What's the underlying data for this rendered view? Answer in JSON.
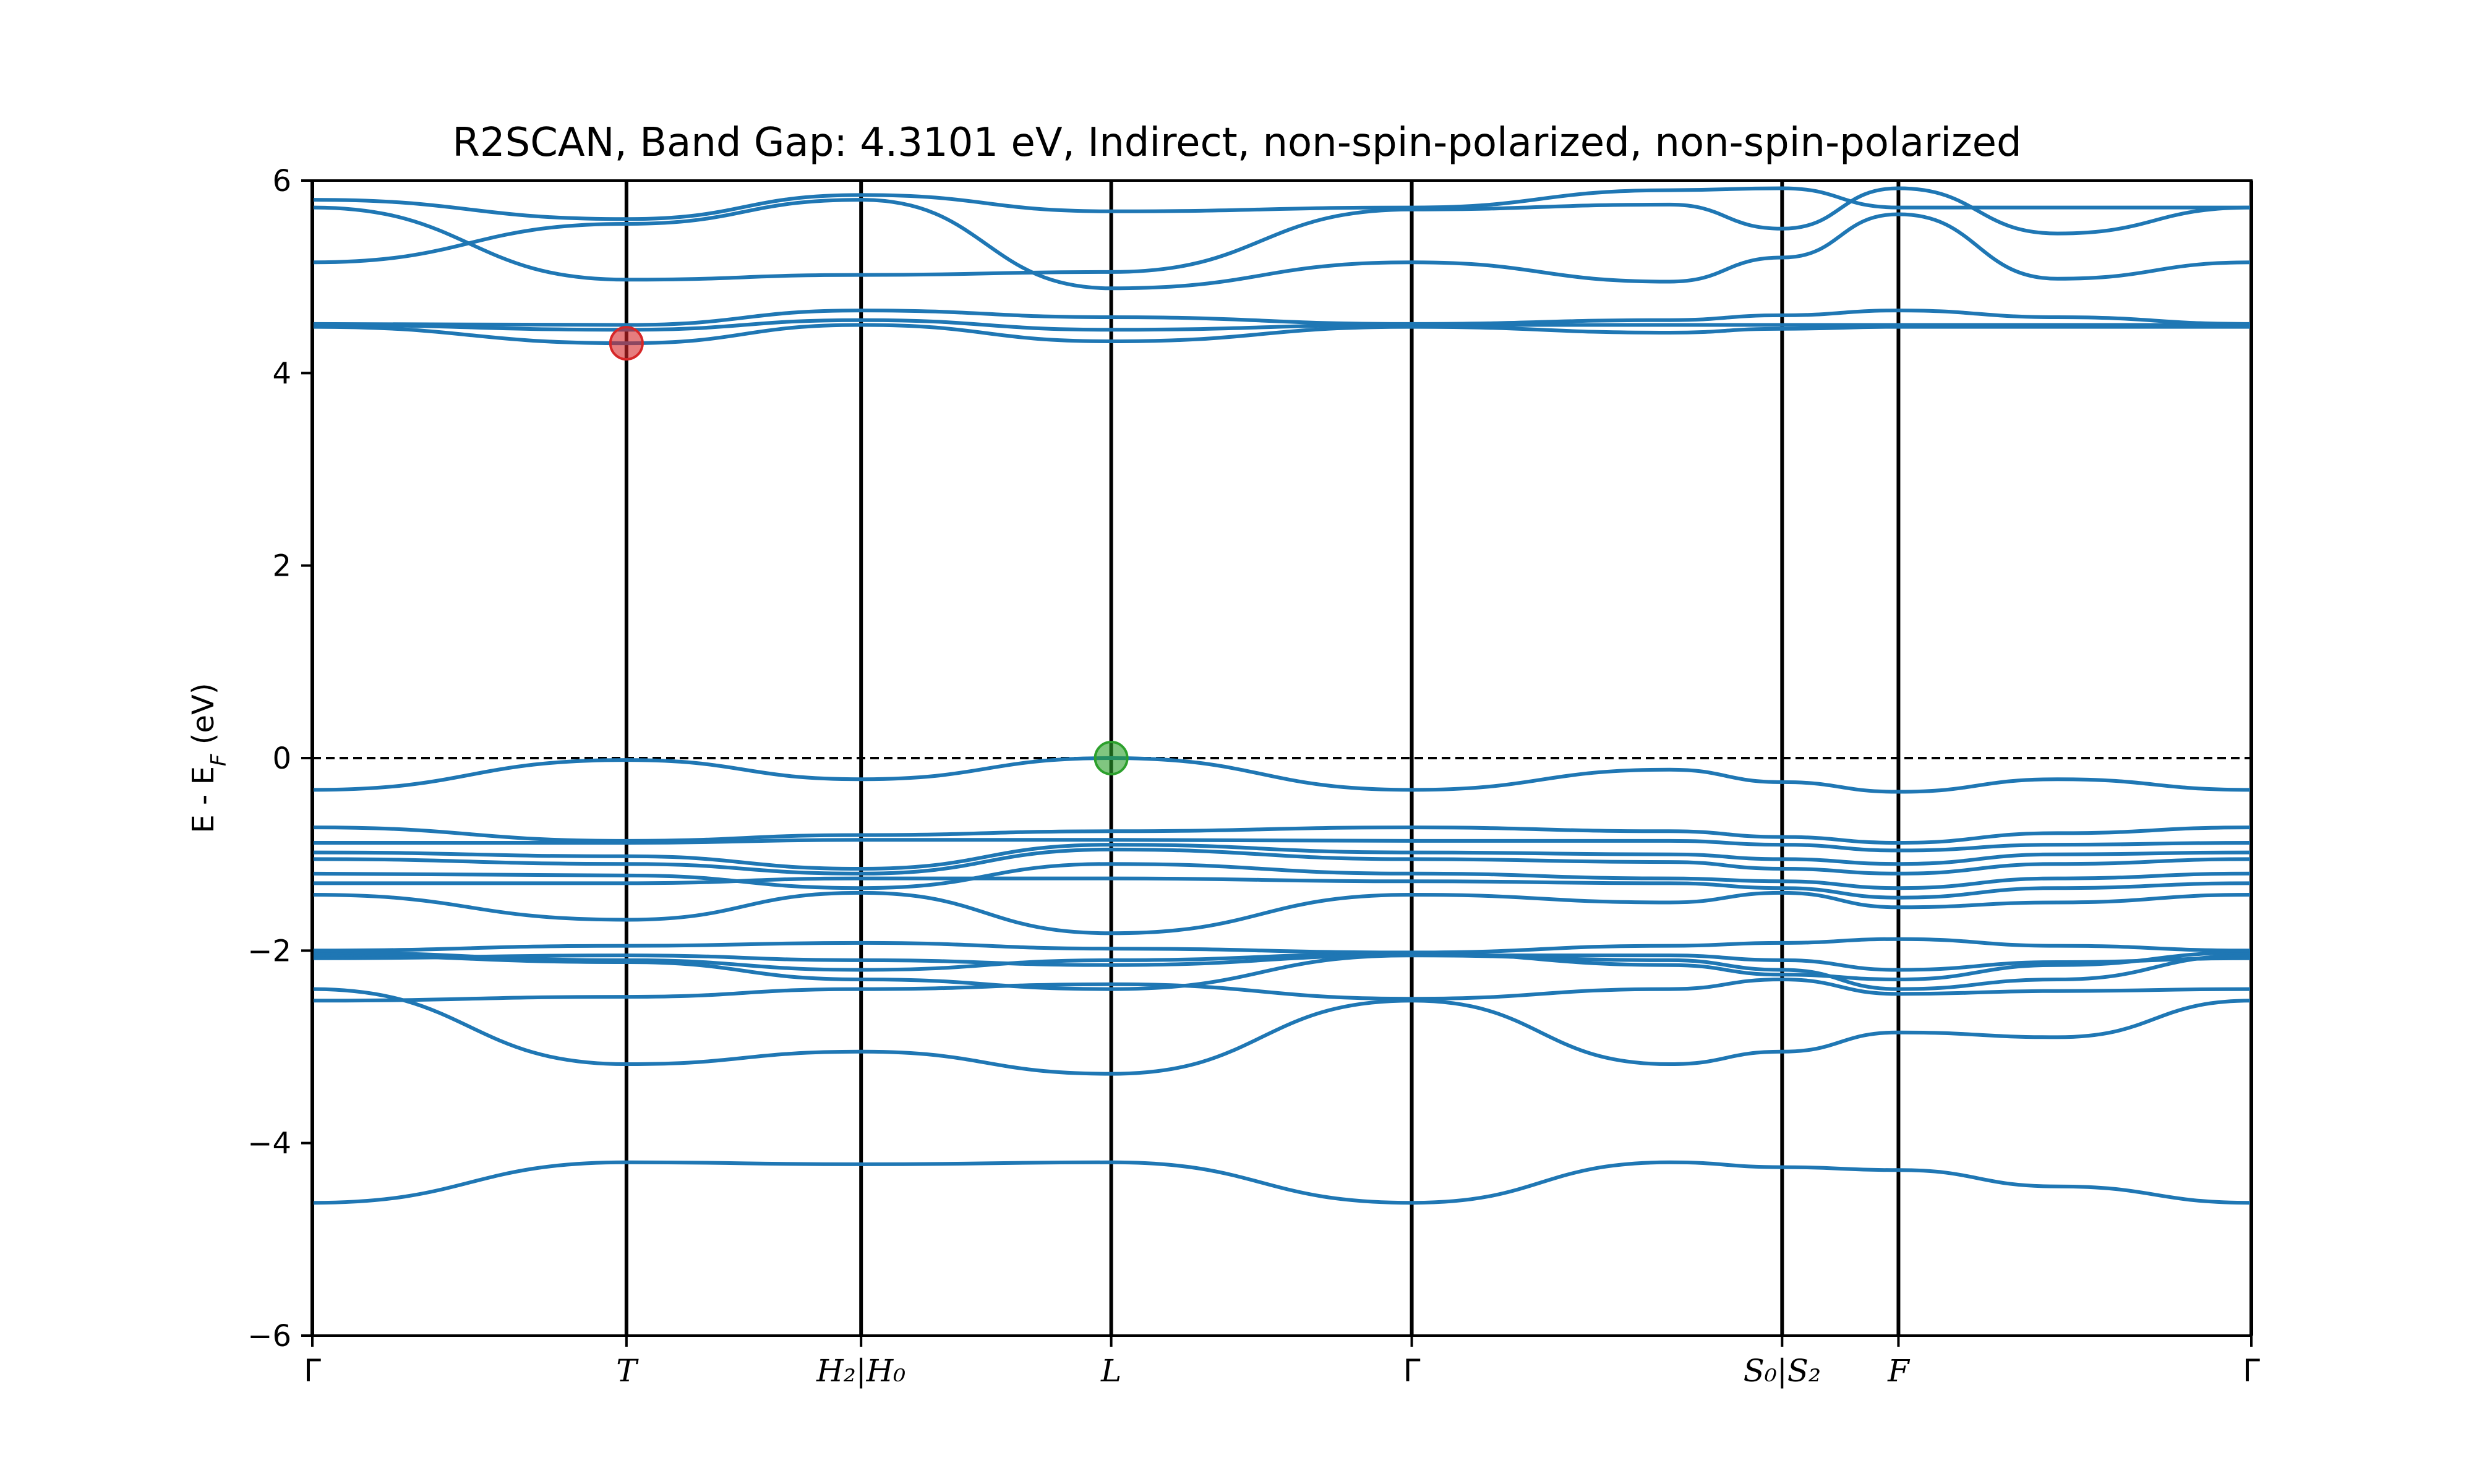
{
  "chart_data": {
    "type": "line",
    "title": "R2SCAN, Band Gap: 4.3101 eV, Indirect, non-spin-polarized, non-spin-polarized",
    "ylabel_main": "E - E",
    "ylabel_sub": "F",
    "ylabel_unit": " (eV)",
    "ylim": [
      -6,
      6
    ],
    "yticks": [
      -6,
      -4,
      -2,
      0,
      2,
      4,
      6
    ],
    "ytick_labels": [
      "−6",
      "−4",
      "−2",
      "0",
      "2",
      "4",
      "6"
    ],
    "xlim": [
      0,
      10
    ],
    "kpoints": [
      {
        "x": 0.0,
        "label": "Γ"
      },
      {
        "x": 1.62,
        "label": "T"
      },
      {
        "x": 2.83,
        "label": "H₂|H₀"
      },
      {
        "x": 4.12,
        "label": "L"
      },
      {
        "x": 5.67,
        "label": "Γ"
      },
      {
        "x": 7.58,
        "label": "S₀|S₂"
      },
      {
        "x": 8.18,
        "label": "F"
      },
      {
        "x": 10.0,
        "label": "Γ"
      }
    ],
    "fermi_level": 0,
    "band_color": "#1f77b4",
    "vbm": {
      "x": 4.12,
      "y": 0.0,
      "color": "#2ca02c"
    },
    "cbm": {
      "x": 1.62,
      "y": 4.31,
      "color": "#d62728"
    },
    "bands": [
      {
        "x": [
          0,
          1.62,
          2.83,
          4.12,
          5.67,
          7.0,
          7.58,
          8.18,
          9.0,
          10
        ],
        "y": [
          -4.62,
          -4.2,
          -4.22,
          -4.2,
          -4.62,
          -4.2,
          -4.25,
          -4.28,
          -4.45,
          -4.62
        ]
      },
      {
        "x": [
          0,
          1.62,
          2.83,
          4.12,
          5.67,
          7.0,
          7.58,
          8.18,
          9.0,
          10
        ],
        "y": [
          -2.4,
          -3.18,
          -3.05,
          -3.28,
          -2.52,
          -3.18,
          -3.05,
          -2.85,
          -2.9,
          -2.52
        ]
      },
      {
        "x": [
          0,
          1.62,
          2.83,
          4.12,
          5.67,
          7.0,
          7.58,
          8.18,
          9.0,
          10
        ],
        "y": [
          -2.52,
          -2.48,
          -2.4,
          -2.35,
          -2.5,
          -2.4,
          -2.3,
          -2.45,
          -2.42,
          -2.4
        ]
      },
      {
        "x": [
          0,
          1.62,
          2.83,
          4.12,
          5.67,
          7.0,
          7.58,
          8.18,
          9.0,
          10
        ],
        "y": [
          -2.05,
          -2.12,
          -2.3,
          -2.4,
          -2.05,
          -2.1,
          -2.2,
          -2.4,
          -2.3,
          -2.05
        ]
      },
      {
        "x": [
          0,
          1.62,
          2.83,
          4.12,
          5.67,
          7.0,
          7.58,
          8.18,
          9.0,
          10
        ],
        "y": [
          -2.02,
          -2.1,
          -2.2,
          -2.1,
          -2.03,
          -2.15,
          -2.25,
          -2.3,
          -2.15,
          -2.02
        ]
      },
      {
        "x": [
          0,
          1.62,
          2.83,
          4.12,
          5.67,
          7.0,
          7.58,
          8.18,
          9.0,
          10
        ],
        "y": [
          -2.0,
          -1.95,
          -1.92,
          -1.98,
          -2.02,
          -1.95,
          -1.92,
          -1.88,
          -1.95,
          -2.0
        ]
      },
      {
        "x": [
          0,
          1.62,
          2.83,
          4.12,
          5.67,
          7.0,
          7.58,
          8.18,
          9.0,
          10
        ],
        "y": [
          -2.08,
          -2.05,
          -2.1,
          -2.15,
          -2.05,
          -2.05,
          -2.1,
          -2.2,
          -2.12,
          -2.08
        ]
      },
      {
        "x": [
          0,
          1.62,
          2.83,
          4.12,
          5.67,
          7.0,
          7.58,
          8.18,
          9.0,
          10
        ],
        "y": [
          -1.42,
          -1.68,
          -1.4,
          -1.82,
          -1.42,
          -1.5,
          -1.4,
          -1.55,
          -1.5,
          -1.42
        ]
      },
      {
        "x": [
          0,
          1.62,
          2.83,
          4.12,
          5.67,
          7.0,
          7.58,
          8.18,
          9.0,
          10
        ],
        "y": [
          -1.3,
          -1.3,
          -1.25,
          -1.25,
          -1.28,
          -1.3,
          -1.35,
          -1.45,
          -1.35,
          -1.3
        ]
      },
      {
        "x": [
          0,
          1.62,
          2.83,
          4.12,
          5.67,
          7.0,
          7.58,
          8.18,
          9.0,
          10
        ],
        "y": [
          -1.2,
          -1.22,
          -1.35,
          -1.1,
          -1.2,
          -1.25,
          -1.28,
          -1.35,
          -1.25,
          -1.2
        ]
      },
      {
        "x": [
          0,
          1.62,
          2.83,
          4.12,
          5.67,
          7.0,
          7.58,
          8.18,
          9.0,
          10
        ],
        "y": [
          -1.05,
          -1.1,
          -1.2,
          -0.95,
          -1.05,
          -1.08,
          -1.15,
          -1.2,
          -1.1,
          -1.05
        ]
      },
      {
        "x": [
          0,
          1.62,
          2.83,
          4.12,
          5.67,
          7.0,
          7.58,
          8.18,
          9.0,
          10
        ],
        "y": [
          -0.98,
          -1.02,
          -1.15,
          -0.9,
          -0.98,
          -1.0,
          -1.05,
          -1.1,
          -1.0,
          -0.98
        ]
      },
      {
        "x": [
          0,
          1.62,
          2.83,
          4.12,
          5.67,
          7.0,
          7.58,
          8.18,
          9.0,
          10
        ],
        "y": [
          -0.88,
          -0.88,
          -0.85,
          -0.85,
          -0.86,
          -0.86,
          -0.9,
          -0.96,
          -0.9,
          -0.88
        ]
      },
      {
        "x": [
          0,
          1.62,
          2.83,
          4.12,
          5.67,
          7.0,
          7.58,
          8.18,
          9.0,
          10
        ],
        "y": [
          -0.72,
          -0.86,
          -0.8,
          -0.76,
          -0.72,
          -0.76,
          -0.82,
          -0.88,
          -0.78,
          -0.72
        ]
      },
      {
        "x": [
          0,
          1.62,
          2.83,
          4.12,
          5.67,
          7.0,
          7.58,
          8.18,
          9.0,
          10
        ],
        "y": [
          -0.33,
          -0.02,
          -0.22,
          0.0,
          -0.33,
          -0.12,
          -0.25,
          -0.35,
          -0.22,
          -0.33
        ]
      },
      {
        "x": [
          0,
          1.62,
          2.83,
          4.12,
          5.67,
          7.0,
          7.58,
          8.18,
          9.0,
          10
        ],
        "y": [
          4.48,
          4.31,
          4.5,
          4.33,
          4.48,
          4.42,
          4.46,
          4.48,
          4.48,
          4.48
        ]
      },
      {
        "x": [
          0,
          1.62,
          2.83,
          4.12,
          5.67,
          7.0,
          7.58,
          8.18,
          9.0,
          10
        ],
        "y": [
          4.5,
          4.45,
          4.55,
          4.45,
          4.5,
          4.5,
          4.5,
          4.5,
          4.5,
          4.5
        ]
      },
      {
        "x": [
          0,
          1.62,
          2.83,
          4.12,
          5.67,
          7.0,
          7.58,
          8.18,
          9.0,
          10
        ],
        "y": [
          4.51,
          4.5,
          4.65,
          4.58,
          4.51,
          4.55,
          4.6,
          4.65,
          4.58,
          4.51
        ]
      },
      {
        "x": [
          0,
          1.62,
          2.83,
          4.12,
          5.67,
          7.0,
          7.58,
          8.18,
          9.0,
          10
        ],
        "y": [
          5.15,
          5.55,
          5.8,
          4.88,
          5.15,
          4.95,
          5.2,
          5.65,
          4.98,
          5.15
        ]
      },
      {
        "x": [
          0,
          1.62,
          2.83,
          4.12,
          5.67,
          7.0,
          7.58,
          8.18,
          9.0,
          10
        ],
        "y": [
          5.72,
          4.97,
          5.02,
          5.05,
          5.7,
          5.75,
          5.5,
          5.92,
          5.45,
          5.72
        ]
      },
      {
        "x": [
          0,
          1.62,
          2.83,
          4.12,
          5.67,
          7.0,
          7.58,
          8.18,
          9.0,
          10
        ],
        "y": [
          5.8,
          5.6,
          5.85,
          5.68,
          5.72,
          5.9,
          5.92,
          5.72,
          5.72,
          5.72
        ]
      }
    ]
  }
}
